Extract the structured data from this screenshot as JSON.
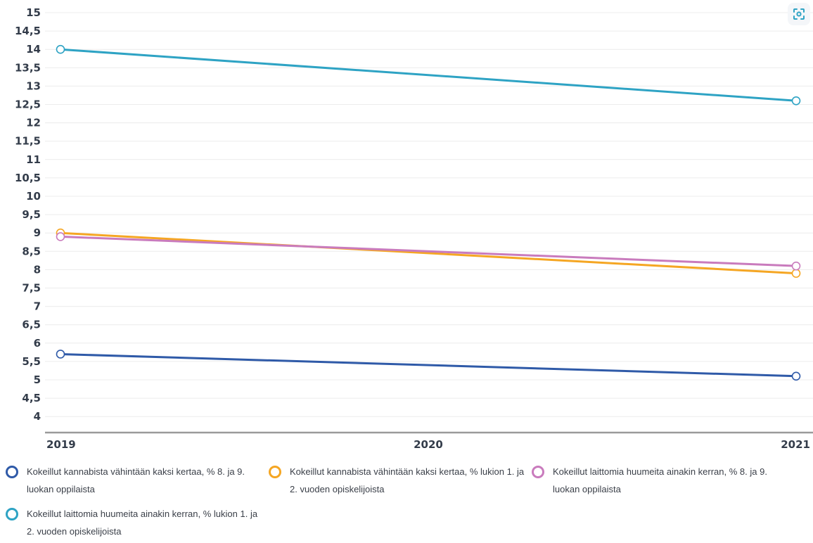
{
  "fullscreen_icon": "scan-focus-icon",
  "chart_data": {
    "type": "line",
    "x": [
      "2019",
      "2020",
      "2021"
    ],
    "yticks": [
      "15",
      "14,5",
      "14",
      "13,5",
      "13",
      "12,5",
      "12",
      "11,5",
      "11",
      "10,5",
      "10",
      "9,5",
      "9",
      "8,5",
      "8",
      "7,5",
      "7",
      "6,5",
      "6",
      "5,5",
      "5",
      "4,5",
      "4"
    ],
    "ylim": [
      3.5,
      15
    ],
    "grid": true,
    "legend_position": "bottom",
    "series": [
      {
        "name": "Kokeillut kannabista vähintään kaksi kertaa, % 8. ja 9. luokan oppilaista",
        "color": "#2f5aa8",
        "values": [
          5.7,
          null,
          5.1
        ]
      },
      {
        "name": "Kokeillut kannabista vähintään kaksi kertaa, % lukion 1. ja 2. vuoden opiskelijoista",
        "color": "#f5a623",
        "values": [
          9.0,
          null,
          7.9
        ]
      },
      {
        "name": "Kokeillut laittomia huumeita ainakin kerran, % 8. ja 9. luokan oppilaista",
        "color": "#c97bbd",
        "values": [
          8.9,
          null,
          8.1
        ]
      },
      {
        "name": "Kokeillut laittomia huumeita ainakin kerran, % lukion 1. ja 2. vuoden opiskelijoista",
        "color": "#2ea3c4",
        "values": [
          14.0,
          null,
          12.6
        ]
      }
    ]
  }
}
